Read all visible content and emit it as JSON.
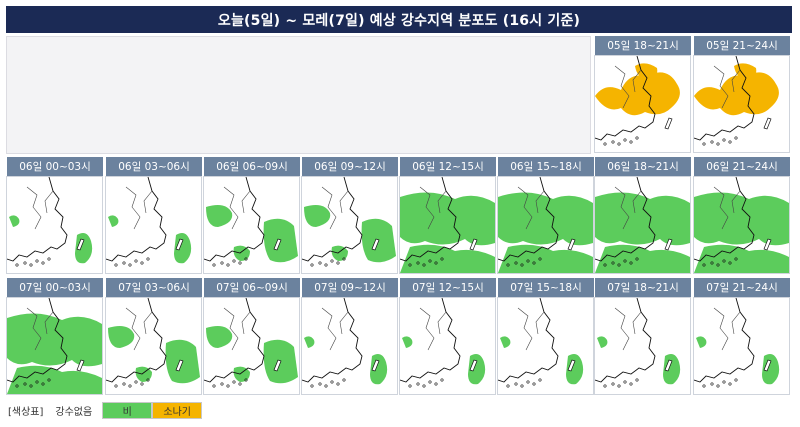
{
  "title": "오늘(5일) ~ 모레(7일) 예상 강수지역 분포도 (16시 기준)",
  "colors": {
    "rain": "#5ccc5c",
    "shower": "#f5b400",
    "header": "#1b2a55",
    "label": "#6b829e"
  },
  "legend": {
    "title": "[색상표]",
    "none_label": "강수없음",
    "rain_label": "비",
    "shower_label": "소나기"
  },
  "panels": [
    {
      "id": "p0",
      "label": "05일 18~21시",
      "type": "shower",
      "coverage": 0.35
    },
    {
      "id": "p1",
      "label": "05일 21~24시",
      "type": "shower",
      "coverage": 0.35
    },
    {
      "id": "p2",
      "label": "06일 00~03시",
      "type": "rain",
      "coverage": 0.1
    },
    {
      "id": "p3",
      "label": "06일 03~06시",
      "type": "rain",
      "coverage": 0.1
    },
    {
      "id": "p4",
      "label": "06일 06~09시",
      "type": "rain",
      "coverage": 0.25
    },
    {
      "id": "p5",
      "label": "06일 09~12시",
      "type": "rain",
      "coverage": 0.4
    },
    {
      "id": "p6",
      "label": "06일 12~15시",
      "type": "rain",
      "coverage": 0.65
    },
    {
      "id": "p7",
      "label": "06일 15~18시",
      "type": "rain",
      "coverage": 0.55
    },
    {
      "id": "p8",
      "label": "06일 18~21시",
      "type": "rain",
      "coverage": 0.7
    },
    {
      "id": "p9",
      "label": "06일 21~24시",
      "type": "rain",
      "coverage": 0.75
    },
    {
      "id": "p10",
      "label": "07일 00~03시",
      "type": "rain",
      "coverage": 0.6
    },
    {
      "id": "p11",
      "label": "07일 03~06시",
      "type": "rain",
      "coverage": 0.5
    },
    {
      "id": "p12",
      "label": "07일 06~09시",
      "type": "rain",
      "coverage": 0.25
    },
    {
      "id": "p13",
      "label": "07일 09~12시",
      "type": "rain",
      "coverage": 0.1
    },
    {
      "id": "p14",
      "label": "07일 12~15시",
      "type": "rain",
      "coverage": 0.08
    },
    {
      "id": "p15",
      "label": "07일 15~18시",
      "type": "rain",
      "coverage": 0.06
    },
    {
      "id": "p16",
      "label": "07일 18~21시",
      "type": "rain",
      "coverage": 0.06
    },
    {
      "id": "p17",
      "label": "07일 21~24시",
      "type": "rain",
      "coverage": 0.1
    }
  ]
}
